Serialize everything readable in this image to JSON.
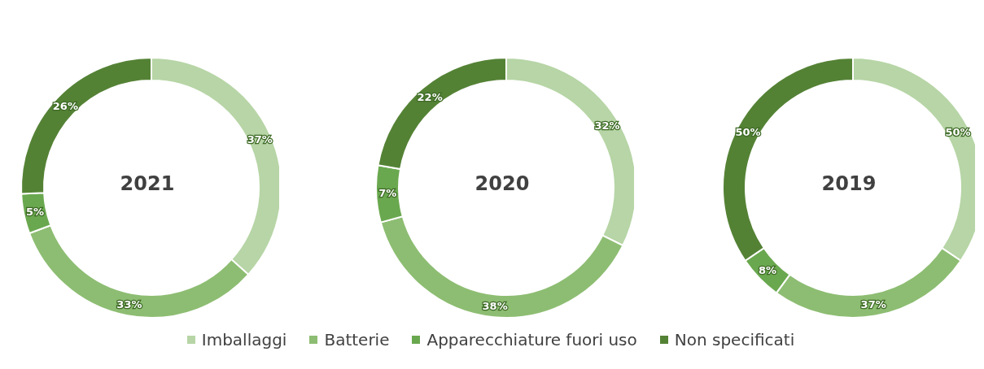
{
  "chart_data": [
    {
      "type": "donut",
      "title": "2021",
      "categories": [
        "Imballaggi",
        "Batterie",
        "Apparecchiature fuori uso",
        "Non specificati"
      ],
      "values": [
        37,
        33,
        5,
        26
      ],
      "value_labels": [
        "37%",
        "33%",
        "5%",
        "26%"
      ],
      "colors": [
        "#b7d5a6",
        "#8dbd72",
        "#6aa84f",
        "#548235"
      ],
      "legend": "bottom"
    },
    {
      "type": "donut",
      "title": "2020",
      "categories": [
        null,
        null,
        null,
        null
      ],
      "values": [
        32,
        38,
        7,
        22
      ],
      "value_labels": [
        "32%",
        "38%",
        "7%",
        "22%"
      ],
      "colors": [
        "#b7d5a6",
        "#8dbd72",
        "#6aa84f",
        "#548235"
      ]
    },
    {
      "type": "donut",
      "title": "2019",
      "categories": [
        null,
        null,
        null,
        null
      ],
      "values": [
        50,
        37,
        8,
        50
      ],
      "value_labels": [
        "50%",
        "37%",
        "8%",
        "50%"
      ],
      "colors": [
        "#b7d5a6",
        "#8dbd72",
        "#6aa84f",
        "#548235"
      ]
    }
  ]
}
